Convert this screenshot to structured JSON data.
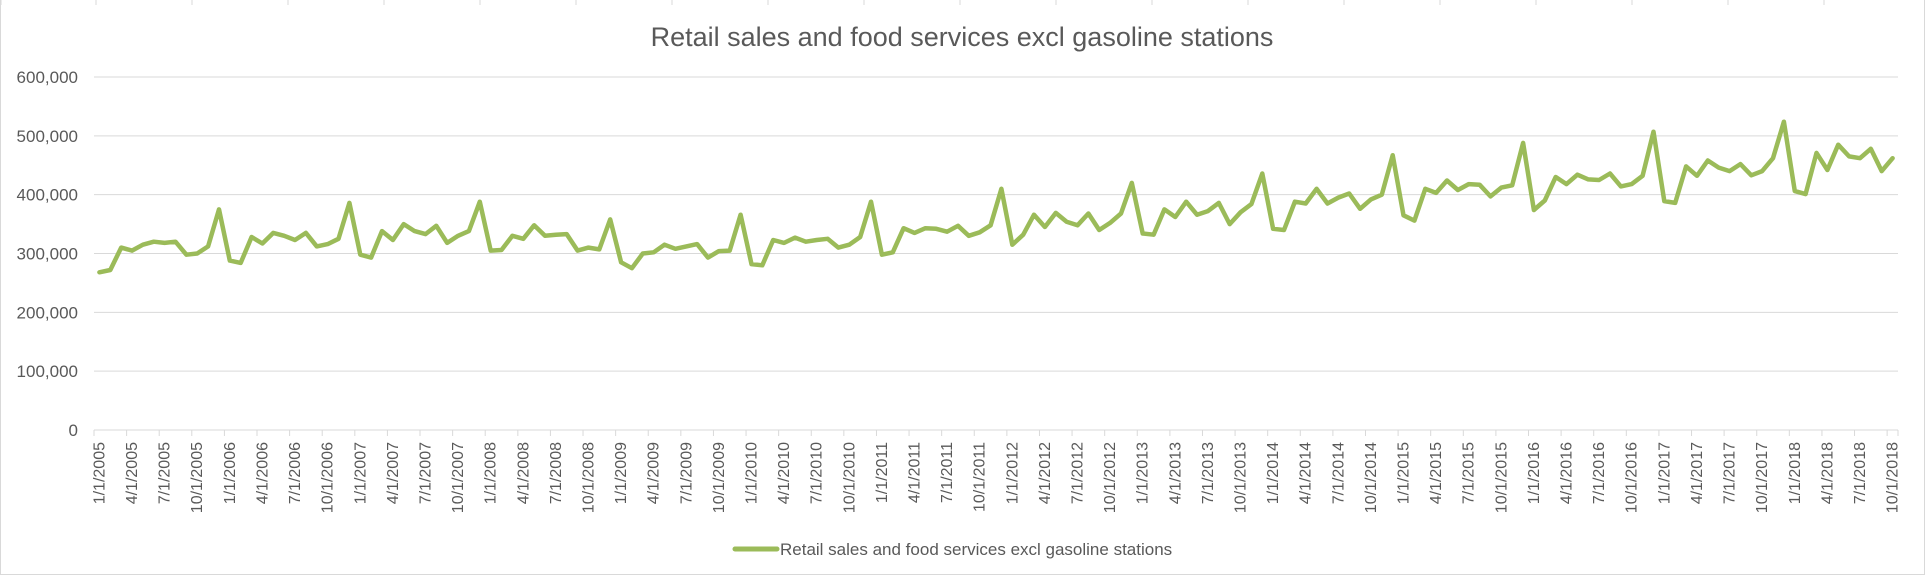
{
  "chart_data": {
    "type": "line",
    "title": "Retail sales and food services excl gasoline stations",
    "xlabel": "",
    "ylabel": "",
    "ylim": [
      0,
      600000
    ],
    "yticks": [
      "0",
      "100,000",
      "200,000",
      "300,000",
      "400,000",
      "500,000",
      "600,000"
    ],
    "grid": true,
    "legend_position": "bottom",
    "color": "#9bbb59",
    "x_tick_labels": [
      "1/1/2005",
      "4/1/2005",
      "7/1/2005",
      "10/1/2005",
      "1/1/2006",
      "4/1/2006",
      "7/1/2006",
      "10/1/2006",
      "1/1/2007",
      "4/1/2007",
      "7/1/2007",
      "10/1/2007",
      "1/1/2008",
      "4/1/2008",
      "7/1/2008",
      "10/1/2008",
      "1/1/2009",
      "4/1/2009",
      "7/1/2009",
      "10/1/2009",
      "1/1/2010",
      "4/1/2010",
      "7/1/2010",
      "10/1/2010",
      "1/1/2011",
      "4/1/2011",
      "7/1/2011",
      "10/1/2011",
      "1/1/2012",
      "4/1/2012",
      "7/1/2012",
      "10/1/2012",
      "1/1/2013",
      "4/1/2013",
      "7/1/2013",
      "10/1/2013",
      "1/1/2014",
      "4/1/2014",
      "7/1/2014",
      "10/1/2014",
      "1/1/2015",
      "4/1/2015",
      "7/1/2015",
      "10/1/2015",
      "1/1/2016",
      "4/1/2016",
      "7/1/2016",
      "10/1/2016",
      "1/1/2017",
      "4/1/2017",
      "7/1/2017",
      "10/1/2017",
      "1/1/2018",
      "4/1/2018",
      "7/1/2018",
      "10/1/2018"
    ],
    "series": [
      {
        "name": "Retail sales and food services excl gasoline stations",
        "start": "2005-01",
        "frequency": "monthly",
        "values": [
          268000,
          272000,
          310000,
          305000,
          315000,
          320000,
          318000,
          320000,
          298000,
          300000,
          312000,
          375000,
          288000,
          284000,
          328000,
          317000,
          335000,
          330000,
          323000,
          335000,
          312000,
          316000,
          325000,
          386000,
          298000,
          293000,
          338000,
          323000,
          350000,
          338000,
          333000,
          347000,
          318000,
          330000,
          338000,
          388000,
          305000,
          306000,
          330000,
          325000,
          348000,
          330000,
          332000,
          333000,
          305000,
          310000,
          307000,
          358000,
          285000,
          275000,
          300000,
          302000,
          315000,
          308000,
          312000,
          316000,
          293000,
          304000,
          305000,
          366000,
          282000,
          280000,
          323000,
          318000,
          327000,
          320000,
          323000,
          325000,
          310000,
          315000,
          328000,
          388000,
          298000,
          302000,
          343000,
          335000,
          343000,
          342000,
          337000,
          347000,
          330000,
          336000,
          348000,
          410000,
          315000,
          332000,
          366000,
          345000,
          369000,
          354000,
          348000,
          368000,
          340000,
          352000,
          368000,
          420000,
          334000,
          332000,
          375000,
          362000,
          388000,
          366000,
          372000,
          386000,
          350000,
          370000,
          384000,
          436000,
          342000,
          340000,
          388000,
          385000,
          410000,
          385000,
          395000,
          402000,
          376000,
          392000,
          400000,
          467000,
          365000,
          356000,
          410000,
          403000,
          424000,
          408000,
          418000,
          417000,
          397000,
          412000,
          416000,
          488000,
          374000,
          390000,
          430000,
          418000,
          434000,
          426000,
          425000,
          436000,
          414000,
          418000,
          432000,
          507000,
          389000,
          386000,
          448000,
          432000,
          458000,
          446000,
          440000,
          452000,
          433000,
          440000,
          462000,
          524000,
          406000,
          401000,
          471000,
          442000,
          485000,
          465000,
          462000,
          478000,
          440000,
          462000
        ]
      }
    ]
  }
}
